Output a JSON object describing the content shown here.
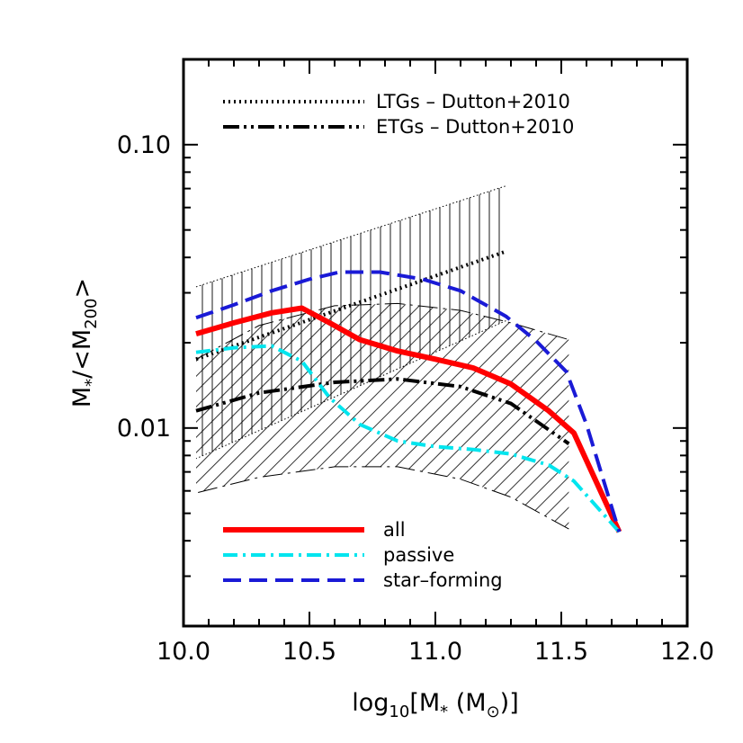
{
  "chart_data": {
    "type": "line",
    "xlabel": {
      "prefix": "log",
      "sub": "10",
      "mid": "[M",
      "star": "*",
      "rest": " (M",
      "sun": "⊙",
      "end": ")]"
    },
    "ylabel": {
      "prefix": "M",
      "star": "*",
      "mid": "/<M",
      "sub": "200",
      "end": ">"
    },
    "xlim": [
      10.0,
      12.0
    ],
    "ylim": [
      0.002,
      0.2
    ],
    "yscale": "log",
    "x_ticks": [
      {
        "value": 10.0,
        "label": "10.0"
      },
      {
        "value": 10.5,
        "label": "10.5"
      },
      {
        "value": 11.0,
        "label": "11.0"
      },
      {
        "value": 11.5,
        "label": "11.5"
      },
      {
        "value": 12.0,
        "label": "12.0"
      }
    ],
    "y_ticks": [
      {
        "value": 0.01,
        "label": "0.01"
      },
      {
        "value": 0.1,
        "label": "0.10"
      }
    ],
    "legend_top": {
      "position": "top-left",
      "entries": [
        {
          "label": "LTGs  –  Dutton+2010",
          "style": "dotted",
          "color": "#000000"
        },
        {
          "label": "ETGs  –  Dutton+2010",
          "style": "dash-dot-dot",
          "color": "#000000"
        }
      ]
    },
    "legend_bottom": {
      "position": "bottom-left",
      "entries": [
        {
          "label": "all",
          "style": "solid",
          "color": "#ff0000"
        },
        {
          "label": "passive",
          "style": "dash-dot",
          "color": "#00e5ee"
        },
        {
          "label": "star–forming",
          "style": "dashed",
          "color": "#1a1ad6"
        }
      ]
    },
    "bands": [
      {
        "name": "LTGs",
        "hatch": "vertical",
        "x": [
          10.05,
          11.28
        ],
        "upper": [
          0.0315,
          0.0715
        ],
        "lower": [
          0.0078,
          0.0239
        ],
        "median": [
          0.0175,
          0.042
        ]
      },
      {
        "name": "ETGs",
        "hatch": "diagonal",
        "x": [
          10.05,
          10.3,
          10.6,
          10.85,
          11.1,
          11.3,
          11.53
        ],
        "upper": [
          0.0175,
          0.023,
          0.027,
          0.0275,
          0.026,
          0.0235,
          0.0205
        ],
        "lower": [
          0.0059,
          0.0067,
          0.0073,
          0.0073,
          0.0066,
          0.0057,
          0.0044
        ],
        "median": [
          0.0115,
          0.0133,
          0.0145,
          0.0149,
          0.014,
          0.0122,
          0.0088
        ]
      }
    ],
    "series": [
      {
        "name": "all",
        "color": "#ff0000",
        "style": "solid",
        "x": [
          10.05,
          10.2,
          10.35,
          10.47,
          10.58,
          10.7,
          10.85,
          11.0,
          11.15,
          11.3,
          11.45,
          11.55,
          11.73
        ],
        "y": [
          0.0215,
          0.0235,
          0.0255,
          0.0265,
          0.0235,
          0.0205,
          0.0187,
          0.0175,
          0.0163,
          0.0143,
          0.0115,
          0.0096,
          0.0043
        ]
      },
      {
        "name": "passive",
        "color": "#00e5ee",
        "style": "dash-dot",
        "x": [
          10.05,
          10.2,
          10.35,
          10.47,
          10.58,
          10.7,
          10.85,
          11.0,
          11.15,
          11.3,
          11.45,
          11.55,
          11.73
        ],
        "y": [
          0.0185,
          0.0192,
          0.0195,
          0.0172,
          0.0128,
          0.0103,
          0.009,
          0.0086,
          0.0084,
          0.0081,
          0.0074,
          0.0065,
          0.0043
        ]
      },
      {
        "name": "star–forming",
        "color": "#1a1ad6",
        "style": "dashed",
        "x": [
          10.05,
          10.2,
          10.35,
          10.5,
          10.62,
          10.78,
          10.95,
          11.1,
          11.28,
          11.4,
          11.52,
          11.6,
          11.73
        ],
        "y": [
          0.0245,
          0.0272,
          0.0305,
          0.0335,
          0.0355,
          0.0355,
          0.0335,
          0.0305,
          0.0248,
          0.0203,
          0.0158,
          0.0103,
          0.0043
        ]
      }
    ]
  }
}
